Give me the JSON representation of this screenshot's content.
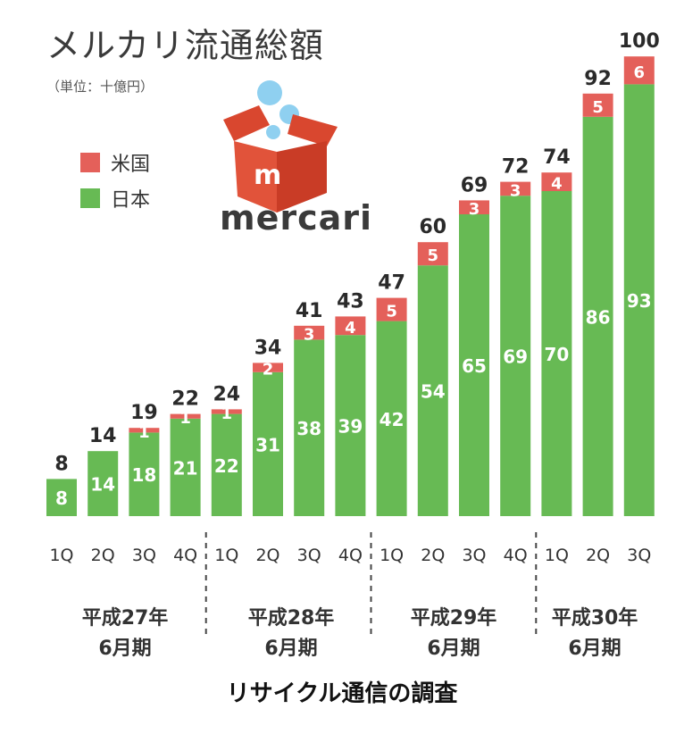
{
  "title": "メルカリ流通総額",
  "unit": "（単位：十億円）",
  "legend": [
    {
      "label": "米国",
      "color": "#e4605a"
    },
    {
      "label": "日本",
      "color": "#67ba54"
    }
  ],
  "logo_text": "mercari",
  "logo_mark": "m",
  "source": "リサイクル通信の調査",
  "groups": [
    {
      "line1": "平成27年",
      "line2": "6月期"
    },
    {
      "line1": "平成28年",
      "line2": "6月期"
    },
    {
      "line1": "平成29年",
      "line2": "6月期"
    },
    {
      "line1": "平成30年",
      "line2": "6月期"
    }
  ],
  "chart_data": {
    "type": "bar",
    "stacked": true,
    "categories": [
      "1Q",
      "2Q",
      "3Q",
      "4Q",
      "1Q",
      "2Q",
      "3Q",
      "4Q",
      "1Q",
      "2Q",
      "3Q",
      "4Q",
      "1Q",
      "2Q",
      "3Q"
    ],
    "series": [
      {
        "name": "日本",
        "color": "#67ba54",
        "values": [
          8,
          14,
          18,
          21,
          22,
          31,
          38,
          39,
          42,
          54,
          65,
          69,
          70,
          86,
          93
        ],
        "labels": [
          "8",
          "14",
          "18",
          "21",
          "22",
          "31",
          "38",
          "39",
          "42",
          "54",
          "65",
          "69",
          "70",
          "86",
          "93"
        ]
      },
      {
        "name": "米国",
        "color": "#e4605a",
        "values": [
          0,
          0,
          1,
          1,
          1,
          2,
          3,
          4,
          5,
          5,
          3,
          3,
          4,
          5,
          6
        ],
        "labels": [
          "",
          "",
          "1",
          "1",
          "1",
          "2",
          "3",
          "4",
          "5",
          "5",
          "3",
          "3",
          "4",
          "5",
          "6"
        ]
      }
    ],
    "totals": [
      "8",
      "14",
      "19",
      "22",
      "24",
      "34",
      "41",
      "43",
      "47",
      "60",
      "69",
      "72",
      "74",
      "92",
      "100"
    ],
    "ylim": [
      0,
      100
    ]
  }
}
